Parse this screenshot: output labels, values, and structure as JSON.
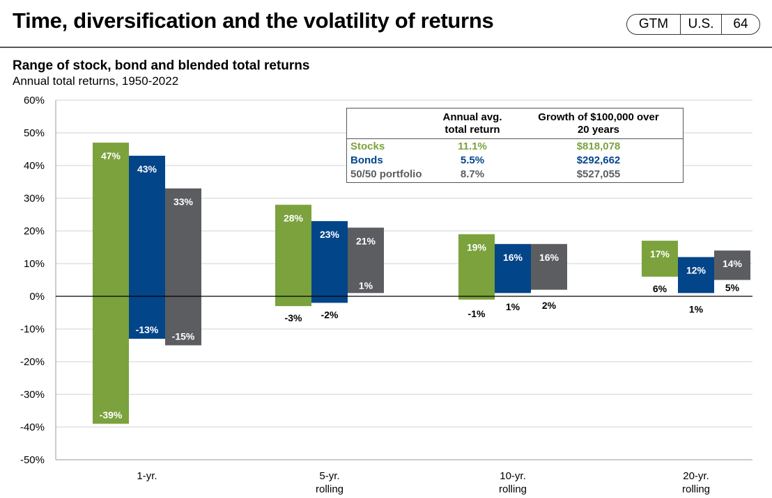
{
  "header": {
    "title": "Time, diversification and the volatility of returns",
    "badge": [
      "GTM",
      "U.S.",
      "64"
    ]
  },
  "colors": {
    "stocks": "#7ba23c",
    "bonds": "#034589",
    "blend": "#5b5d60"
  },
  "chart_data": {
    "type": "bar",
    "title": "Range of stock, bond and blended total returns",
    "subtitle": "Annual total returns, 1950-2022",
    "ylim": [
      -50,
      60
    ],
    "yticks": [
      "60%",
      "50%",
      "40%",
      "30%",
      "20%",
      "10%",
      "0%",
      "-10%",
      "-20%",
      "-30%",
      "-40%",
      "-50%"
    ],
    "grid": true,
    "categories": [
      "1-yr.",
      "5-yr.\nrolling",
      "10-yr.\nrolling",
      "20-yr.\nrolling"
    ],
    "series": [
      {
        "name": "Stocks",
        "color": "#7ba23c",
        "high": [
          47,
          28,
          19,
          17
        ],
        "low": [
          -39,
          -3,
          -1,
          6
        ],
        "high_labels": [
          "47%",
          "28%",
          "19%",
          "17%"
        ],
        "low_labels": [
          "-39%",
          "-3%",
          "-1%",
          "6%"
        ]
      },
      {
        "name": "Bonds",
        "color": "#034589",
        "high": [
          43,
          23,
          16,
          12
        ],
        "low": [
          -13,
          -2,
          1,
          1
        ],
        "high_labels": [
          "43%",
          "23%",
          "16%",
          "12%"
        ],
        "low_labels": [
          "-13%",
          "-2%",
          "1%",
          "1%"
        ]
      },
      {
        "name": "50/50 portfolio",
        "color": "#5b5d60",
        "high": [
          33,
          21,
          16,
          14
        ],
        "low": [
          -15,
          1,
          2,
          5
        ],
        "high_labels": [
          "33%",
          "21%",
          "16%",
          "14%"
        ],
        "low_labels": [
          "-15%",
          "1%",
          "2%",
          "5%"
        ]
      }
    ],
    "table": {
      "headers": [
        "Annual avg.\ntotal return",
        "Growth of $100,000 over\n20 years"
      ],
      "rows": [
        {
          "label": "Stocks",
          "avg": "11.1%",
          "growth": "$818,078",
          "color": "#7ba23c"
        },
        {
          "label": "Bonds",
          "avg": "5.5%",
          "growth": "$292,662",
          "color": "#034589"
        },
        {
          "label": "50/50 portfolio",
          "avg": "8.7%",
          "growth": "$527,055",
          "color": "#5b5d60"
        }
      ]
    }
  }
}
